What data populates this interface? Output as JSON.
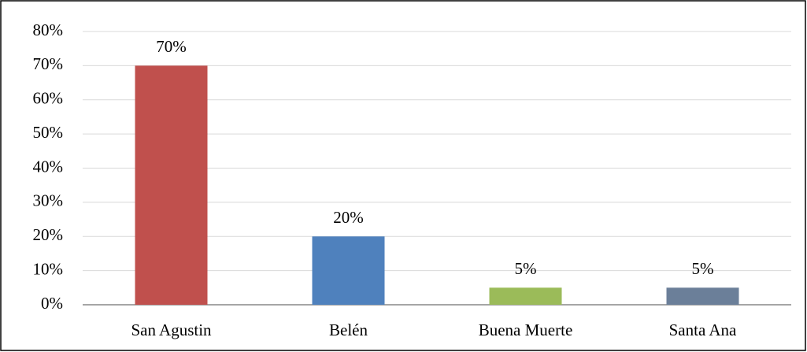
{
  "chart_data": {
    "type": "bar",
    "categories": [
      "San Agustin",
      "Belén",
      "Buena Muerte",
      "Santa Ana"
    ],
    "values": [
      70,
      20,
      5,
      5
    ],
    "value_labels": [
      "70%",
      "20%",
      "5%",
      "5%"
    ],
    "colors": [
      "#c0504d",
      "#4f81bd",
      "#9bbb59",
      "#6b7f99"
    ],
    "ylim": [
      0,
      80
    ],
    "yticks": [
      {
        "value": 0,
        "label": "0%"
      },
      {
        "value": 10,
        "label": "10%"
      },
      {
        "value": 20,
        "label": "20%"
      },
      {
        "value": 30,
        "label": "30%"
      },
      {
        "value": 40,
        "label": "40%"
      },
      {
        "value": 50,
        "label": "50%"
      },
      {
        "value": 60,
        "label": "60%"
      },
      {
        "value": 70,
        "label": "70%"
      },
      {
        "value": 80,
        "label": "80%"
      }
    ],
    "grid": true
  }
}
